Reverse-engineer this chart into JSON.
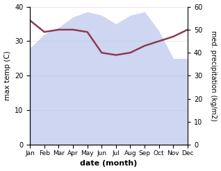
{
  "months": [
    "Jan",
    "Feb",
    "Mar",
    "Apr",
    "May",
    "Jun",
    "Jul",
    "Aug",
    "Sep",
    "Oct",
    "Nov",
    "Dec"
  ],
  "temp": [
    28,
    32,
    34,
    37,
    38.5,
    37.5,
    35,
    37.5,
    38.5,
    33,
    25,
    25
  ],
  "precip": [
    54,
    49,
    50,
    50,
    49,
    40,
    39,
    40,
    43,
    45,
    47,
    50
  ],
  "temp_color": "#b0bce8",
  "precip_color": "#8b3a52",
  "xlabel": "date (month)",
  "ylabel_left": "max temp (C)",
  "ylabel_right": "med. precipitation (kg/m2)",
  "ylim_left": [
    0,
    40
  ],
  "ylim_right": [
    0,
    60
  ],
  "yticks_left": [
    0,
    10,
    20,
    30,
    40
  ],
  "yticks_right": [
    0,
    10,
    20,
    30,
    40,
    50,
    60
  ],
  "fill_alpha": 0.6
}
